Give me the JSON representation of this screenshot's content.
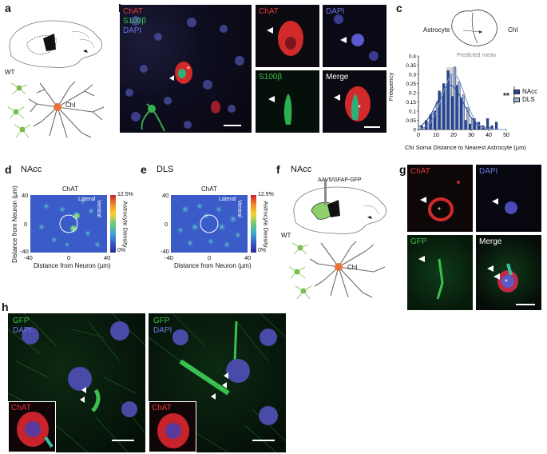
{
  "panels": {
    "a": {
      "label": "a",
      "genotype": "WT",
      "cell_label": "ChI"
    },
    "b": {
      "label": "b",
      "channels": [
        "ChAT",
        "S100β",
        "DAPI"
      ],
      "crop_channels": {
        "chat": "ChAT",
        "dapi": "DAPI",
        "s100b": "S100β",
        "merge": "Merge"
      }
    },
    "c": {
      "label": "c",
      "schematic": {
        "astrocyte": "Astrocyte",
        "chi": "ChI"
      }
    },
    "d": {
      "label": "d",
      "region": "NAcc",
      "title": "ChAT",
      "lateral": "Lateral",
      "ventral": "Ventral",
      "colorbar_label": "Astrocyte Density",
      "colorbar_max": "12.5%",
      "colorbar_min": "0%",
      "xlabel": "Distance from Neuron (µm)",
      "ylabel": "Distance from Neuron (µm)",
      "xticks": [
        "-40",
        "0",
        "40"
      ],
      "yticks": [
        "40",
        "0",
        "-40"
      ]
    },
    "e": {
      "label": "e",
      "region": "DLS",
      "title": "ChAT",
      "lateral": "Lateral",
      "ventral": "Ventral",
      "colorbar_label": "Astrocyte Density",
      "colorbar_max": "12.5%",
      "colorbar_min": "0%",
      "xlabel": "Distance from Neuron (µm)",
      "xticks": [
        "-40",
        "0",
        "40"
      ],
      "yticks": [
        "40",
        "0",
        "-40"
      ]
    },
    "f": {
      "label": "f",
      "region": "NAcc",
      "virus": "AAV5/GFAP-GFP",
      "genotype": "WT",
      "cell_label": "ChI"
    },
    "g": {
      "label": "g",
      "channels": {
        "chat": "ChAT",
        "dapi": "DAPI",
        "gfp": "GFP",
        "merge": "Merge"
      }
    },
    "h": {
      "label": "h",
      "left": {
        "gfp": "GFP",
        "dapi": "DAPI",
        "inset": "ChAT"
      },
      "right": {
        "gfp": "GFP",
        "dapi": "DAPI",
        "inset": "ChAT"
      }
    }
  },
  "chart_data": {
    "type": "bar",
    "xlabel": "ChI Soma Distance to Nearest Astrocyte (µm)",
    "ylabel": "Frequency",
    "xlim": [
      0,
      50
    ],
    "ylim": [
      0,
      0.4
    ],
    "xticks": [
      "0",
      "10",
      "20",
      "30",
      "40",
      "50"
    ],
    "yticks": [
      "0",
      "0.05",
      "0.1",
      "0.15",
      "0.2",
      "0.25",
      "0.3",
      "0.35",
      "0.4"
    ],
    "annotation": "Predicted mean",
    "significance": "**",
    "legend_position": "right",
    "bin_width": 2.5,
    "series": [
      {
        "name": "NAcc",
        "color": "#27479a",
        "x": [
          2.5,
          5,
          7.5,
          10,
          12.5,
          15,
          17.5,
          20,
          22.5,
          25,
          27.5,
          30,
          32.5,
          35,
          37.5,
          40,
          42.5,
          45
        ],
        "values": [
          0.02,
          0.05,
          0.08,
          0.1,
          0.21,
          0.25,
          0.32,
          0.18,
          0.24,
          0.17,
          0.05,
          0.03,
          0.06,
          0.04,
          0.02,
          0.06,
          0.02,
          0.04
        ]
      },
      {
        "name": "DLS",
        "color": "#9cb3da",
        "x": [
          2.5,
          5,
          7.5,
          10,
          12.5,
          15,
          17.5,
          20,
          22.5,
          25,
          27.5,
          30,
          32.5,
          35,
          37.5,
          40
        ],
        "values": [
          0.01,
          0.04,
          0.09,
          0.15,
          0.18,
          0.22,
          0.3,
          0.34,
          0.26,
          0.19,
          0.12,
          0.06,
          0.03,
          0.02,
          0.01,
          0.01
        ]
      }
    ],
    "fits": [
      {
        "name": "NAcc",
        "mean": 18,
        "sd": 7.5,
        "peak": 0.24,
        "color": "#27479a"
      },
      {
        "name": "DLS",
        "mean": 20,
        "sd": 6.5,
        "peak": 0.3,
        "color": "#7a96cc"
      }
    ],
    "predicted_mean_range": [
      16,
      22
    ]
  }
}
